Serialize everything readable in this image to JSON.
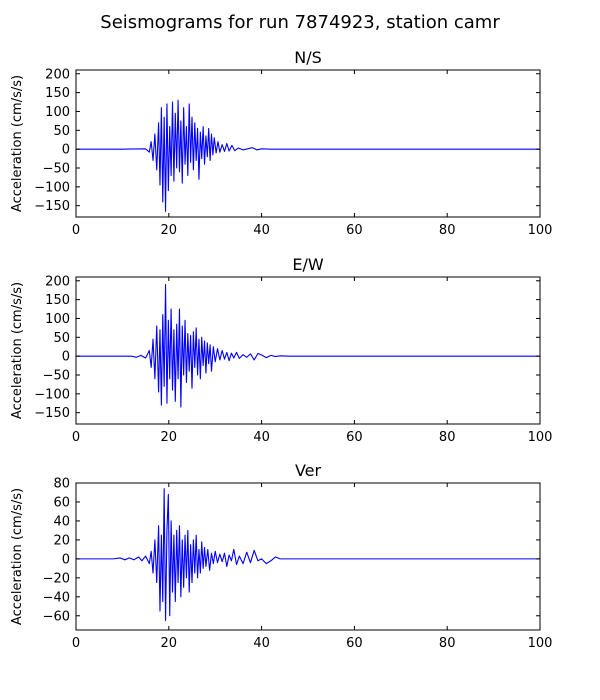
{
  "chart_data": {
    "title": "Seismograms for run 7874923, station camr",
    "panels": [
      {
        "type": "line",
        "title": "N/S",
        "xlabel": "",
        "ylabel": "Acceleration (cm/s/s)",
        "xlim": [
          0,
          100
        ],
        "ylim": [
          -180,
          210
        ],
        "xticks": [
          0,
          20,
          40,
          60,
          80,
          100
        ],
        "yticks": [
          -150,
          -100,
          -50,
          0,
          50,
          100,
          150,
          200
        ],
        "color": "#0000ff",
        "grid": false,
        "series": [
          {
            "x": [
              0,
              10,
              15,
              15.8,
              16.2,
              16.6,
              17.0,
              17.4,
              17.8,
              18.1,
              18.4,
              18.7,
              19.0,
              19.3,
              19.6,
              19.9,
              20.2,
              20.5,
              20.8,
              21.1,
              21.4,
              21.7,
              22.0,
              22.3,
              22.6,
              22.9,
              23.2,
              23.5,
              23.8,
              24.1,
              24.4,
              24.7,
              25.0,
              25.3,
              25.6,
              25.9,
              26.2,
              26.5,
              26.8,
              27.1,
              27.4,
              27.7,
              28.0,
              28.3,
              28.6,
              28.9,
              29.2,
              29.5,
              29.8,
              30.2,
              30.6,
              31.0,
              31.5,
              32.0,
              32.5,
              33.0,
              33.6,
              34.2,
              35.0,
              36.0,
              37.0,
              38.0,
              39.0,
              40.0,
              42.0,
              45.0,
              50.0,
              60.0,
              80.0,
              100.0
            ],
            "y": [
              0,
              0,
              1,
              -8,
              20,
              -30,
              40,
              -55,
              70,
              -95,
              110,
              -140,
              85,
              -165,
              120,
              -110,
              60,
              -70,
              125,
              -85,
              95,
              -50,
              130,
              -60,
              75,
              -90,
              110,
              -40,
              60,
              -70,
              120,
              -35,
              85,
              -55,
              70,
              -30,
              55,
              -80,
              45,
              -25,
              60,
              -40,
              35,
              -20,
              55,
              -30,
              40,
              -15,
              30,
              -10,
              20,
              -8,
              12,
              -6,
              15,
              -5,
              10,
              -4,
              3,
              -2,
              1,
              4,
              -2,
              1,
              0,
              0,
              0,
              0,
              0,
              0
            ]
          }
        ]
      },
      {
        "type": "line",
        "title": "E/W",
        "xlabel": "",
        "ylabel": "Acceleration (cm/s/s)",
        "xlim": [
          0,
          100
        ],
        "ylim": [
          -180,
          210
        ],
        "xticks": [
          0,
          20,
          40,
          60,
          80,
          100
        ],
        "yticks": [
          -150,
          -100,
          -50,
          0,
          50,
          100,
          150,
          200
        ],
        "color": "#0000ff",
        "grid": false,
        "series": [
          {
            "x": [
              0,
              10,
              12,
              13,
              14,
              15.0,
              15.8,
              16.2,
              16.6,
              17.0,
              17.4,
              17.8,
              18.1,
              18.4,
              18.7,
              19.0,
              19.3,
              19.6,
              19.9,
              20.2,
              20.5,
              20.8,
              21.1,
              21.4,
              21.7,
              22.0,
              22.3,
              22.6,
              22.9,
              23.2,
              23.5,
              23.8,
              24.1,
              24.4,
              24.7,
              25.0,
              25.3,
              25.6,
              25.9,
              26.2,
              26.5,
              26.8,
              27.1,
              27.4,
              27.7,
              28.0,
              28.3,
              28.6,
              28.9,
              29.2,
              29.6,
              30.0,
              30.5,
              31.0,
              31.5,
              32.0,
              32.5,
              33.0,
              33.5,
              34.0,
              34.6,
              35.2,
              36.0,
              36.8,
              37.6,
              38.4,
              39.2,
              40.0,
              41.0,
              42.0,
              43.0,
              44.0,
              46.0,
              50.0,
              60.0,
              80.0,
              100.0
            ],
            "y": [
              0,
              0,
              0,
              -3,
              2,
              -5,
              15,
              -30,
              45,
              -60,
              80,
              -95,
              70,
              -130,
              110,
              -80,
              190,
              -125,
              95,
              -60,
              125,
              -90,
              70,
              -120,
              85,
              -60,
              125,
              -135,
              80,
              -50,
              95,
              -70,
              60,
              -40,
              55,
              -85,
              65,
              -30,
              75,
              -50,
              45,
              -60,
              50,
              -25,
              40,
              -45,
              35,
              -20,
              30,
              -40,
              25,
              -15,
              20,
              -10,
              15,
              -8,
              10,
              -12,
              8,
              -5,
              10,
              -6,
              4,
              -3,
              6,
              -10,
              7,
              3,
              -4,
              2,
              -1,
              1,
              0,
              0,
              0,
              0,
              0
            ]
          }
        ]
      },
      {
        "type": "line",
        "title": "Ver",
        "xlabel": "",
        "ylabel": "Acceleration (cm/s/s)",
        "xlim": [
          0,
          100
        ],
        "ylim": [
          -75,
          80
        ],
        "xticks": [
          0,
          20,
          40,
          60,
          80,
          100
        ],
        "yticks": [
          -60,
          -40,
          -20,
          0,
          20,
          40,
          60,
          80
        ],
        "color": "#0000ff",
        "grid": false,
        "series": [
          {
            "x": [
              0,
              8,
              9.5,
              10.5,
              11.5,
              12.5,
              13.5,
              14.2,
              15.0,
              15.8,
              16.2,
              16.6,
              17.0,
              17.4,
              17.8,
              18.1,
              18.4,
              18.7,
              19.0,
              19.3,
              19.6,
              19.9,
              20.2,
              20.5,
              20.8,
              21.1,
              21.4,
              21.7,
              22.0,
              22.3,
              22.6,
              22.9,
              23.2,
              23.5,
              23.8,
              24.1,
              24.4,
              24.7,
              25.0,
              25.3,
              25.6,
              25.9,
              26.2,
              26.5,
              26.8,
              27.1,
              27.4,
              27.7,
              28.0,
              28.4,
              28.8,
              29.2,
              29.6,
              30.0,
              30.5,
              31.0,
              31.5,
              32.0,
              32.5,
              33.0,
              33.5,
              34.0,
              34.6,
              35.2,
              36.0,
              36.8,
              37.6,
              38.4,
              39.2,
              40.0,
              41.0,
              42.0,
              43.0,
              44.0,
              46.0,
              50.0,
              60.0,
              80.0,
              100.0
            ],
            "y": [
              0,
              0,
              1,
              -1,
              1,
              -1,
              2,
              -2,
              3,
              -5,
              8,
              -15,
              20,
              -25,
              35,
              -55,
              25,
              -45,
              74,
              -65,
              30,
              68,
              -60,
              40,
              -35,
              25,
              -45,
              30,
              -25,
              35,
              -40,
              20,
              -30,
              25,
              -20,
              30,
              -35,
              15,
              -25,
              20,
              -15,
              25,
              -20,
              10,
              -15,
              18,
              -10,
              12,
              -8,
              10,
              -12,
              6,
              -5,
              8,
              -4,
              5,
              -3,
              6,
              -8,
              4,
              -2,
              10,
              -6,
              3,
              -5,
              7,
              -4,
              9,
              -2,
              0,
              -5,
              -2,
              2,
              0,
              0,
              0,
              0,
              0,
              0
            ]
          }
        ]
      }
    ]
  }
}
